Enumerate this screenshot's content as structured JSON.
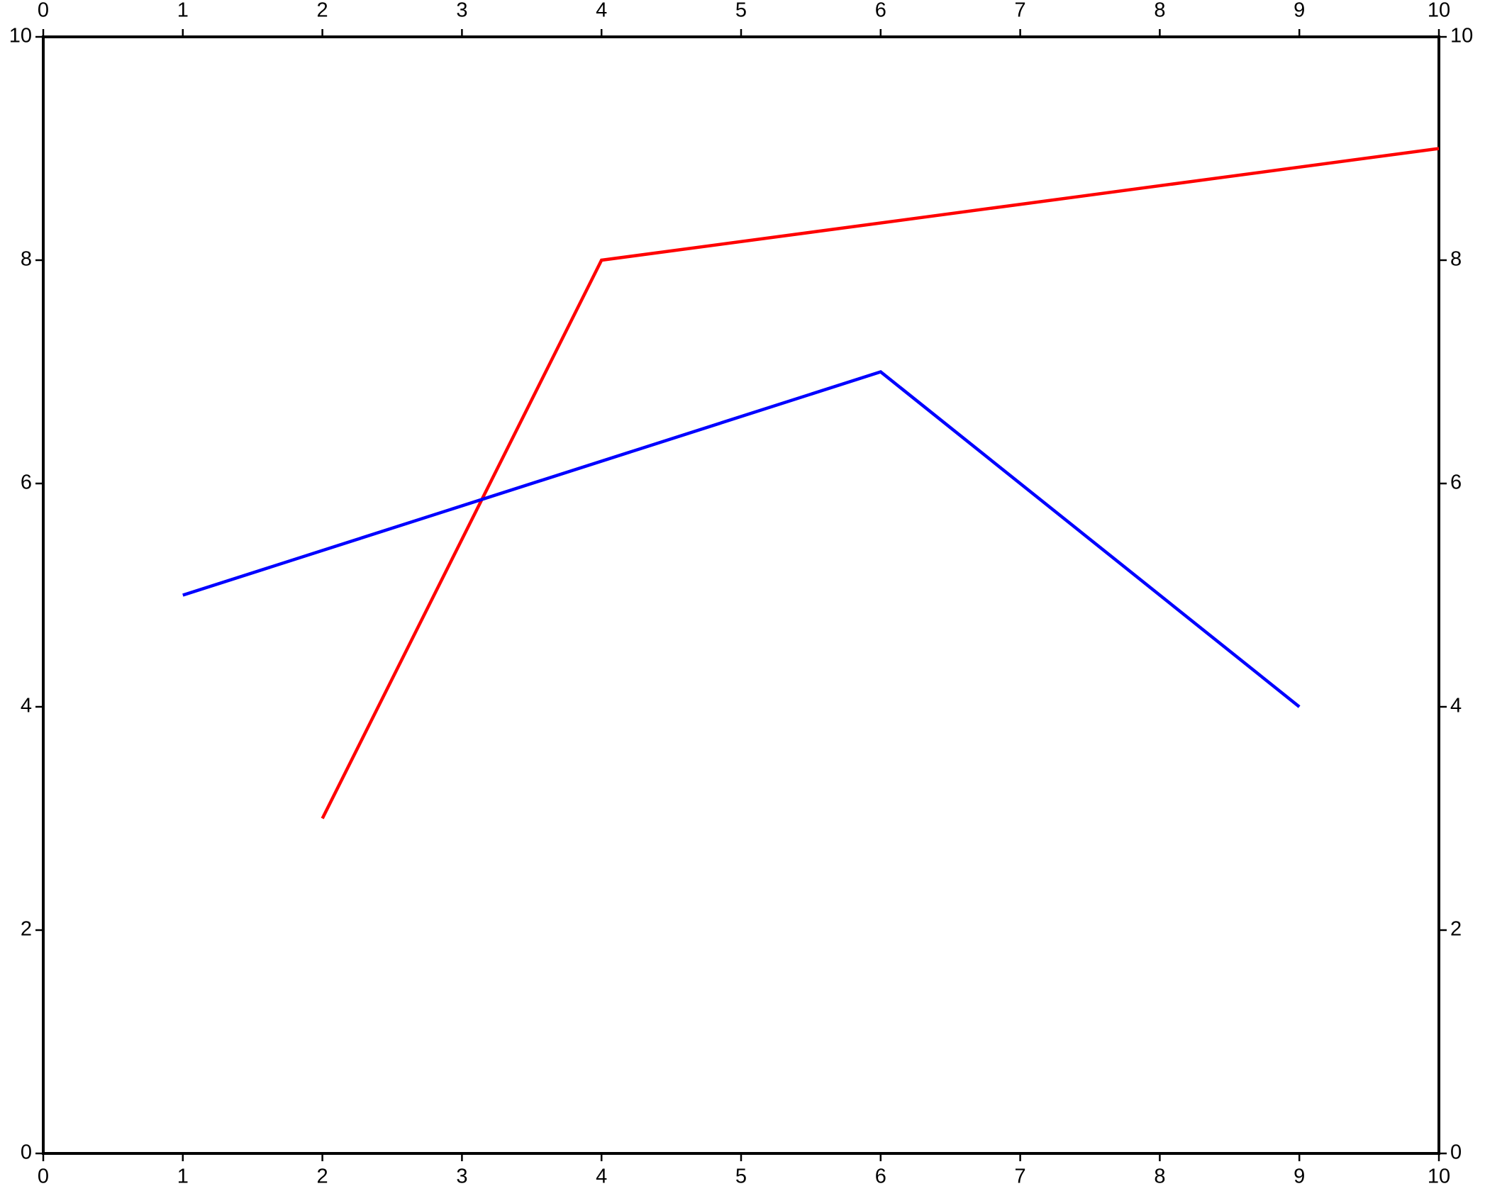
{
  "chart_data": {
    "type": "line",
    "series": [
      {
        "color": "#ff0000",
        "x": [
          2,
          4,
          10
        ],
        "values": [
          3,
          8,
          9
        ]
      },
      {
        "color": "#0000ff",
        "x": [
          1,
          6,
          9
        ],
        "values": [
          5,
          7,
          4
        ]
      }
    ],
    "xlim": [
      0,
      10
    ],
    "xticks": [
      0,
      1,
      2,
      3,
      4,
      5,
      6,
      7,
      8,
      9,
      10
    ],
    "ylim": [
      0,
      10
    ],
    "yticks": [
      0,
      2,
      4,
      6,
      8,
      10
    ],
    "grid": false
  }
}
